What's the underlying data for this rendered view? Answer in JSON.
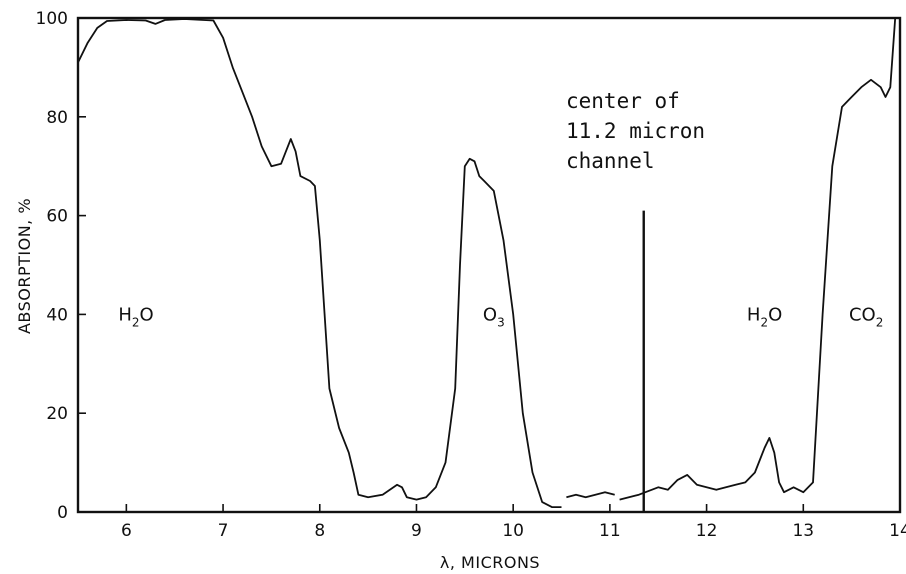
{
  "chart_data": {
    "type": "line",
    "xlabel": "λ, MICRONS",
    "ylabel": "ABSORPTION, %",
    "xlim": [
      5.5,
      14
    ],
    "ylim": [
      0,
      100
    ],
    "x_ticks": [
      6,
      7,
      8,
      9,
      10,
      11,
      12,
      13,
      14
    ],
    "y_ticks": [
      0,
      20,
      40,
      60,
      80,
      100
    ],
    "grid": false,
    "series": [
      {
        "segments": [
          [
            [
              5.5,
              91
            ],
            [
              5.6,
              95
            ],
            [
              5.7,
              98
            ],
            [
              5.8,
              99.4
            ],
            [
              6.0,
              99.6
            ],
            [
              6.2,
              99.5
            ],
            [
              6.3,
              98.8
            ],
            [
              6.4,
              99.6
            ],
            [
              6.6,
              99.8
            ],
            [
              6.9,
              99.5
            ],
            [
              7.0,
              96
            ],
            [
              7.1,
              90
            ],
            [
              7.2,
              85
            ],
            [
              7.3,
              80
            ],
            [
              7.4,
              74
            ],
            [
              7.5,
              70
            ],
            [
              7.6,
              70.5
            ],
            [
              7.65,
              73
            ],
            [
              7.7,
              75.5
            ],
            [
              7.75,
              73
            ],
            [
              7.8,
              68
            ],
            [
              7.9,
              67
            ],
            [
              7.95,
              66
            ],
            [
              8.0,
              55
            ],
            [
              8.05,
              40
            ],
            [
              8.1,
              25
            ],
            [
              8.2,
              17
            ],
            [
              8.3,
              12
            ],
            [
              8.35,
              8
            ],
            [
              8.4,
              3.5
            ],
            [
              8.5,
              3
            ],
            [
              8.65,
              3.5
            ],
            [
              8.8,
              5.5
            ],
            [
              8.85,
              5
            ],
            [
              8.9,
              3
            ],
            [
              9.0,
              2.5
            ],
            [
              9.1,
              3
            ],
            [
              9.2,
              5
            ],
            [
              9.3,
              10
            ],
            [
              9.4,
              25
            ],
            [
              9.45,
              50
            ],
            [
              9.5,
              70
            ],
            [
              9.55,
              71.5
            ],
            [
              9.6,
              71
            ],
            [
              9.65,
              68
            ],
            [
              9.7,
              67
            ],
            [
              9.8,
              65
            ],
            [
              9.9,
              55
            ],
            [
              10.0,
              40
            ],
            [
              10.1,
              20
            ],
            [
              10.2,
              8
            ],
            [
              10.3,
              2
            ],
            [
              10.4,
              1
            ],
            [
              10.5,
              1
            ]
          ],
          [
            [
              10.55,
              3
            ],
            [
              10.65,
              3.5
            ],
            [
              10.75,
              3
            ],
            [
              10.85,
              3.5
            ],
            [
              10.95,
              4
            ],
            [
              11.05,
              3.5
            ]
          ],
          [
            [
              11.1,
              2.5
            ],
            [
              11.3,
              3.5
            ],
            [
              11.5,
              5
            ],
            [
              11.6,
              4.5
            ],
            [
              11.7,
              6.5
            ],
            [
              11.8,
              7.5
            ],
            [
              11.9,
              5.5
            ],
            [
              12.0,
              5
            ],
            [
              12.1,
              4.5
            ],
            [
              12.2,
              5
            ],
            [
              12.3,
              5.5
            ],
            [
              12.4,
              6
            ],
            [
              12.5,
              8
            ],
            [
              12.6,
              13
            ],
            [
              12.65,
              15
            ],
            [
              12.7,
              12
            ],
            [
              12.75,
              6
            ],
            [
              12.8,
              4
            ],
            [
              12.9,
              5
            ],
            [
              13.0,
              4
            ],
            [
              13.1,
              6
            ],
            [
              13.2,
              40
            ],
            [
              13.3,
              70
            ],
            [
              13.4,
              82
            ],
            [
              13.5,
              84
            ],
            [
              13.6,
              86
            ],
            [
              13.7,
              87.5
            ],
            [
              13.8,
              86
            ],
            [
              13.85,
              84
            ],
            [
              13.9,
              86
            ],
            [
              13.95,
              100
            ],
            [
              14.0,
              100
            ]
          ]
        ]
      }
    ],
    "vline": {
      "x": 11.35,
      "y_top": 61
    },
    "annotation": [
      "center of",
      "11.2 micron",
      "channel"
    ],
    "bands": [
      {
        "main": "H",
        "sub": "2",
        "tail": "O",
        "x": 6.1,
        "y": 40
      },
      {
        "main": "O",
        "sub": "3",
        "tail": "",
        "x": 9.8,
        "y": 40
      },
      {
        "main": "H",
        "sub": "2",
        "tail": "O",
        "x": 12.6,
        "y": 40
      },
      {
        "main": "CO",
        "sub": "2",
        "tail": "",
        "x": 13.65,
        "y": 40
      }
    ]
  }
}
